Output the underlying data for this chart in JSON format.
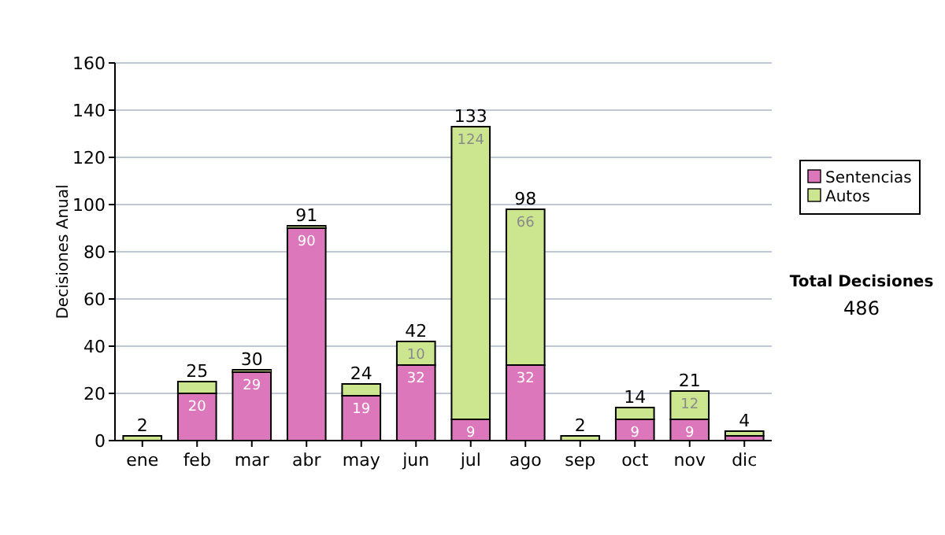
{
  "chart_data": {
    "type": "bar",
    "stacked": true,
    "ylabel": "Decisiones Anual",
    "categories": [
      "ene",
      "feb",
      "mar",
      "abr",
      "may",
      "jun",
      "jul",
      "ago",
      "sep",
      "oct",
      "nov",
      "dic"
    ],
    "series": [
      {
        "name": "Sentencias",
        "color": "#dd77bb",
        "values": [
          0,
          20,
          29,
          90,
          19,
          32,
          9,
          32,
          0,
          9,
          9,
          2
        ],
        "value_labels": [
          null,
          "20",
          "29",
          "90",
          "19",
          "32",
          "9",
          "32",
          null,
          "9",
          "9",
          null
        ]
      },
      {
        "name": "Autos",
        "color": "#cce58f",
        "values": [
          2,
          5,
          1,
          1,
          5,
          10,
          124,
          66,
          2,
          5,
          12,
          2
        ],
        "value_labels": [
          null,
          null,
          null,
          null,
          null,
          "10",
          "124",
          "66",
          null,
          null,
          "12",
          null
        ]
      }
    ],
    "totals": [
      "2",
      "25",
      "30",
      "91",
      "24",
      "42",
      "133",
      "98",
      "2",
      "14",
      "21",
      "4"
    ],
    "ylim": [
      0,
      160
    ],
    "yticks": [
      0,
      20,
      40,
      60,
      80,
      100,
      120,
      140,
      160
    ],
    "grid": "y",
    "legend": "right",
    "annotations": [
      "Total Decisiones",
      "486"
    ]
  }
}
